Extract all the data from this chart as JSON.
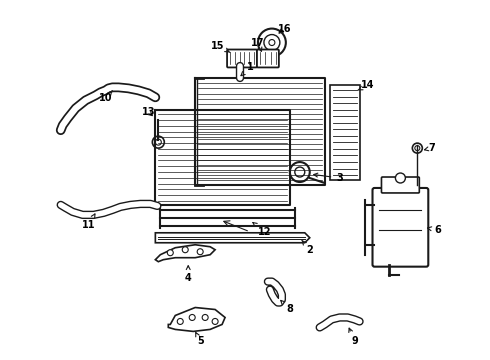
{
  "bg_color": "#ffffff",
  "line_color": "#1a1a1a",
  "text_color": "#000000",
  "figsize": [
    4.9,
    3.6
  ],
  "dpi": 100
}
